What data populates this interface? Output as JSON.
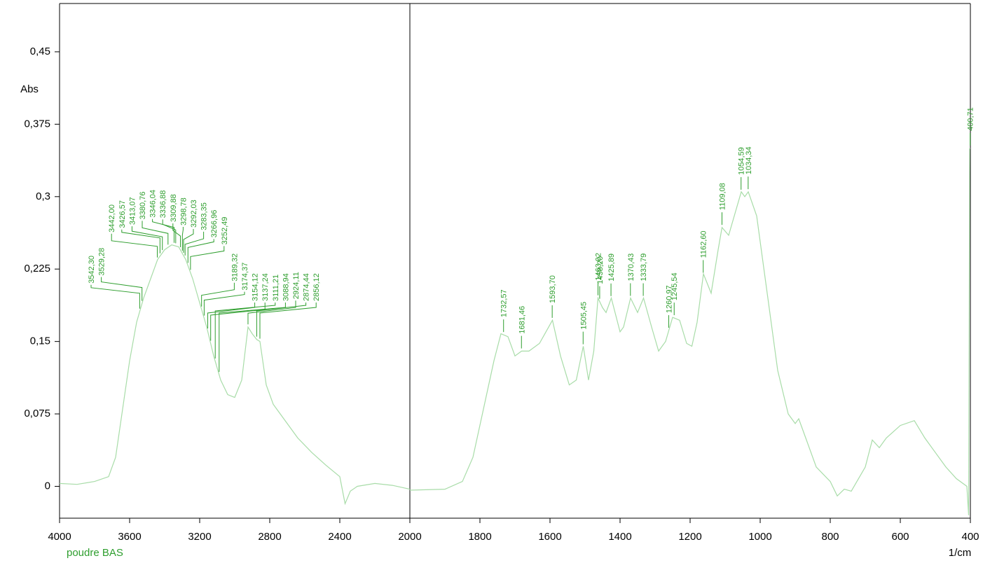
{
  "chart_data": [
    {
      "type": "line",
      "ylabel": "Abs",
      "ylim": [
        -0.033,
        0.5
      ],
      "yticks": [
        0,
        {
          "value": 0.075,
          "label": "0,075"
        },
        {
          "value": 0.15,
          "label": "0,15"
        },
        {
          "value": 0.225,
          "label": "0,225"
        },
        {
          "value": 0.3,
          "label": "0,3"
        },
        {
          "value": 0.375,
          "label": "0,375"
        },
        {
          "value": 0.45,
          "label": "0,45"
        }
      ],
      "xlim": [
        4000,
        2000
      ],
      "xticks": [
        4000,
        3600,
        3200,
        2800,
        2400
      ],
      "series": [
        {
          "name": "poudre BAS",
          "color": "#a8dca8",
          "x": [
            4000,
            3900,
            3800,
            3720,
            3680,
            3640,
            3600,
            3560,
            3520,
            3480,
            3440,
            3400,
            3360,
            3320,
            3280,
            3240,
            3200,
            3160,
            3120,
            3080,
            3040,
            3000,
            2960,
            2924,
            2900,
            2874,
            2856,
            2820,
            2780,
            2720,
            2640,
            2560,
            2480,
            2400,
            2370,
            2340,
            2300,
            2200,
            2100,
            2000
          ],
          "values": [
            0.003,
            0.002,
            0.005,
            0.01,
            0.03,
            0.08,
            0.13,
            0.17,
            0.195,
            0.215,
            0.235,
            0.245,
            0.25,
            0.248,
            0.235,
            0.215,
            0.19,
            0.165,
            0.135,
            0.11,
            0.095,
            0.092,
            0.11,
            0.165,
            0.158,
            0.152,
            0.15,
            0.105,
            0.085,
            0.07,
            0.05,
            0.035,
            0.022,
            0.01,
            -0.018,
            -0.005,
            0.0,
            0.003,
            0.001,
            -0.003
          ]
        }
      ],
      "peaks": [
        {
          "value": 3542.3,
          "label": "3542,30"
        },
        {
          "value": 3529.28,
          "label": "3529,28"
        },
        {
          "value": 3442.0,
          "label": "3442,00"
        },
        {
          "value": 3426.57,
          "label": "3426,57"
        },
        {
          "value": 3413.07,
          "label": "3413,07"
        },
        {
          "value": 3380.76,
          "label": "3380,76"
        },
        {
          "value": 3346.04,
          "label": "3346,04"
        },
        {
          "value": 3336.88,
          "label": "3336,88"
        },
        {
          "value": 3309.88,
          "label": "3309,88"
        },
        {
          "value": 3298.78,
          "label": "3298,78"
        },
        {
          "value": 3292.03,
          "label": "3292,03"
        },
        {
          "value": 3283.35,
          "label": "3283,35"
        },
        {
          "value": 3266.96,
          "label": "3266,96"
        },
        {
          "value": 3252.49,
          "label": "3252,49"
        },
        {
          "value": 3189.32,
          "label": "3189,32"
        },
        {
          "value": 3174.37,
          "label": "3174,37"
        },
        {
          "value": 3154.12,
          "label": "3154,12"
        },
        {
          "value": 3137.24,
          "label": "3137,24"
        },
        {
          "value": 3111.21,
          "label": "3111,21"
        },
        {
          "value": 3088.94,
          "label": "3088,94"
        },
        {
          "value": 2924.11,
          "label": "2924,11"
        },
        {
          "value": 2874.44,
          "label": "2874,44"
        },
        {
          "value": 2856.12,
          "label": "2856,12"
        }
      ]
    },
    {
      "type": "line",
      "xlabel": "1/cm",
      "xlim": [
        2000,
        400
      ],
      "xticks": [
        2000,
        1800,
        1600,
        1400,
        1200,
        1000,
        800,
        600,
        400
      ],
      "series": [
        {
          "color": "#a8dca8",
          "x": [
            2000,
            1900,
            1850,
            1820,
            1790,
            1760,
            1740,
            1720,
            1700,
            1681,
            1660,
            1630,
            1593,
            1570,
            1545,
            1525,
            1505,
            1490,
            1475,
            1463,
            1450,
            1440,
            1425,
            1400,
            1390,
            1370,
            1350,
            1333,
            1310,
            1290,
            1270,
            1250,
            1230,
            1210,
            1195,
            1180,
            1162,
            1140,
            1120,
            1109,
            1090,
            1070,
            1054,
            1044,
            1034,
            1010,
            980,
            950,
            920,
            900,
            890,
            870,
            840,
            800,
            780,
            760,
            740,
            700,
            680,
            660,
            640,
            600,
            560,
            530,
            500,
            470,
            440,
            410,
            405,
            402,
            400
          ],
          "values": [
            -0.004,
            -0.003,
            0.005,
            0.03,
            0.08,
            0.13,
            0.158,
            0.155,
            0.135,
            0.14,
            0.14,
            0.148,
            0.172,
            0.135,
            0.105,
            0.11,
            0.145,
            0.11,
            0.14,
            0.195,
            0.185,
            0.18,
            0.195,
            0.16,
            0.165,
            0.195,
            0.18,
            0.195,
            0.165,
            0.14,
            0.15,
            0.175,
            0.172,
            0.148,
            0.145,
            0.17,
            0.22,
            0.2,
            0.245,
            0.268,
            0.26,
            0.285,
            0.305,
            0.3,
            0.305,
            0.28,
            0.2,
            0.12,
            0.075,
            0.065,
            0.07,
            0.05,
            0.02,
            0.005,
            -0.01,
            -0.003,
            -0.005,
            0.02,
            0.048,
            0.04,
            0.05,
            0.063,
            0.068,
            0.05,
            0.035,
            0.02,
            0.008,
            0.0,
            -0.03,
            0.35,
            0.35
          ]
        }
      ],
      "peaks": [
        {
          "value": 1732.57,
          "label": "1732,57"
        },
        {
          "value": 1681.46,
          "label": "1681,46"
        },
        {
          "value": 1593.7,
          "label": "1593,70"
        },
        {
          "value": 1505.45,
          "label": "1505,45"
        },
        {
          "value": 1463.02,
          "label": "1463,02"
        },
        {
          "value": 1458.2,
          "label": "1458,20"
        },
        {
          "value": 1425.89,
          "label": "1425,89"
        },
        {
          "value": 1370.43,
          "label": "1370,43"
        },
        {
          "value": 1333.79,
          "label": "1333,79"
        },
        {
          "value": 1260.97,
          "label": "1260,97"
        },
        {
          "value": 1245.54,
          "label": "1245,54"
        },
        {
          "value": 1162.6,
          "label": "1162,60"
        },
        {
          "value": 1109.08,
          "label": "1109,08"
        },
        {
          "value": 1054.59,
          "label": "1054,59"
        },
        {
          "value": 1034.34,
          "label": "1034,34"
        },
        {
          "value": 400.71,
          "label": "400,71"
        }
      ]
    }
  ]
}
